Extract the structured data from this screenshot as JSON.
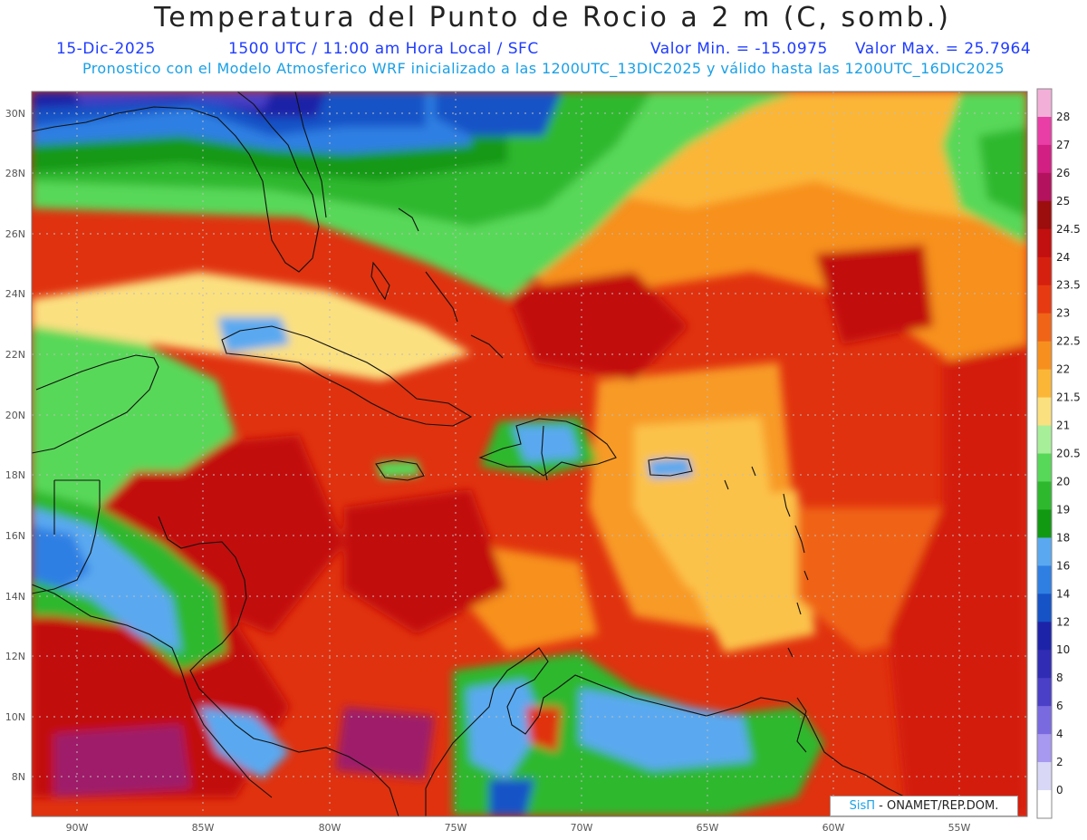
{
  "header": {
    "title": "Temperatura del Punto de Rocio a 2 m (C, somb.)",
    "date": "15-Dic-2025",
    "time": "1500 UTC / 11:00 am Hora Local / SFC",
    "min_label": "Valor Min. = -15.0975",
    "max_label": "Valor Max. = 25.7964",
    "model_line": "Pronostico con el Modelo Atmosferico WRF inicializado a las 1200UTC_13DIC2025 y válido hasta las  1200UTC_16DIC2025"
  },
  "map": {
    "lon_labels": [
      "90W",
      "85W",
      "80W",
      "75W",
      "70W",
      "65W",
      "60W",
      "55W"
    ],
    "lat_labels": [
      "30N",
      "28N",
      "26N",
      "24N",
      "22N",
      "20N",
      "18N",
      "16N",
      "14N",
      "12N",
      "10N",
      "8N"
    ],
    "grid_lines": "dotted",
    "value_range": {
      "min": -15.0975,
      "max": 25.7964
    }
  },
  "colorbar": {
    "labels": [
      "28",
      "27",
      "26",
      "25",
      "24.5",
      "24",
      "23.5",
      "23",
      "22.5",
      "22",
      "21.5",
      "21",
      "20.5",
      "20",
      "19",
      "18",
      "16",
      "14",
      "12",
      "10",
      "8",
      "6",
      "4",
      "2",
      "0"
    ],
    "colors": [
      "#f2b0d8",
      "#e83ea6",
      "#d11f83",
      "#b3125e",
      "#9c0d0d",
      "#c20f0f",
      "#d6200f",
      "#e63a12",
      "#f06418",
      "#f78f1f",
      "#fbb638",
      "#fbe080",
      "#a8ef9a",
      "#58d858",
      "#2eb82e",
      "#129912",
      "#5aa9f0",
      "#2f7fe3",
      "#1553c7",
      "#1d23a8",
      "#302cb3",
      "#4a3fc7",
      "#7a6ae0",
      "#a798f0",
      "#d8d8f6",
      "#ffffff"
    ]
  },
  "credit": {
    "brand": "SisΠ",
    "text": " - ONAMET/REP.DOM."
  }
}
